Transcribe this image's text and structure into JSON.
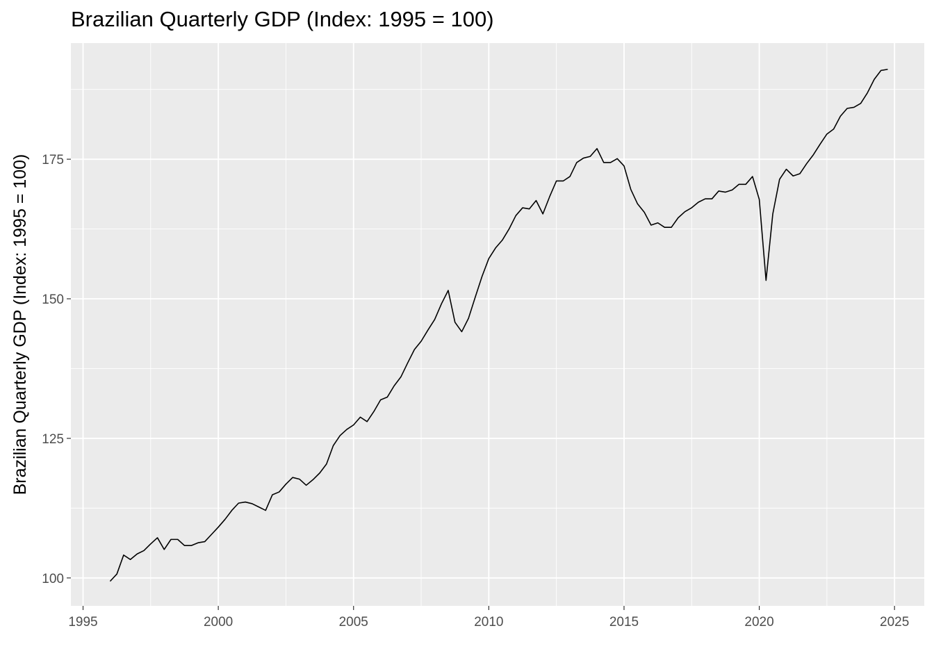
{
  "chart_data": {
    "type": "line",
    "title": "Brazilian Quarterly GDP (Index: 1995 = 100)",
    "xlabel": "",
    "ylabel": "Brazilian Quarterly GDP (Index: 1995 = 100)",
    "xlim": [
      1994.55,
      2026.1
    ],
    "ylim": [
      95.0,
      195.8
    ],
    "x_ticks": [
      1995,
      2000,
      2005,
      2010,
      2015,
      2020,
      2025
    ],
    "x_tick_labels": [
      "1995",
      "2000",
      "2005",
      "2010",
      "2015",
      "2020",
      "2025"
    ],
    "y_ticks": [
      100,
      125,
      150,
      175
    ],
    "y_tick_labels": [
      "100",
      "125",
      "150",
      "175"
    ],
    "grid": true,
    "legend": "none",
    "colors": {
      "panel": "#ebebeb",
      "grid": "#ffffff",
      "line": "#000000",
      "tick_text": "#4d4d4d"
    },
    "series": [
      {
        "x": [
          1996.0,
          1996.25,
          1996.5,
          1996.75,
          1997.0,
          1997.25,
          1997.5,
          1997.75,
          1998.0,
          1998.25,
          1998.5,
          1998.75,
          1999.0,
          1999.25,
          1999.5,
          1999.75,
          2000.0,
          2000.25,
          2000.5,
          2000.75,
          2001.0,
          2001.25,
          2001.5,
          2001.75,
          2002.0,
          2002.25,
          2002.5,
          2002.75,
          2003.0,
          2003.25,
          2003.5,
          2003.75,
          2004.0,
          2004.25,
          2004.5,
          2004.75,
          2005.0,
          2005.25,
          2005.5,
          2005.75,
          2006.0,
          2006.25,
          2006.5,
          2006.75,
          2007.0,
          2007.25,
          2007.5,
          2007.75,
          2008.0,
          2008.25,
          2008.5,
          2008.75,
          2009.0,
          2009.25,
          2009.5,
          2009.75,
          2010.0,
          2010.25,
          2010.5,
          2010.75,
          2011.0,
          2011.25,
          2011.5,
          2011.75,
          2012.0,
          2012.25,
          2012.5,
          2012.75,
          2013.0,
          2013.25,
          2013.5,
          2013.75,
          2014.0,
          2014.25,
          2014.5,
          2014.75,
          2015.0,
          2015.25,
          2015.5,
          2015.75,
          2016.0,
          2016.25,
          2016.5,
          2016.75,
          2017.0,
          2017.25,
          2017.5,
          2017.75,
          2018.0,
          2018.25,
          2018.5,
          2018.75,
          2019.0,
          2019.25,
          2019.5,
          2019.75,
          2020.0,
          2020.25,
          2020.5,
          2020.75,
          2021.0,
          2021.25,
          2021.5,
          2021.75,
          2022.0,
          2022.25,
          2022.5,
          2022.75,
          2023.0,
          2023.25,
          2023.5,
          2023.75,
          2024.0,
          2024.25,
          2024.5,
          2024.75
        ],
        "y": [
          99.4,
          100.7,
          104.1,
          103.3,
          104.3,
          104.9,
          106.1,
          107.2,
          105.1,
          106.9,
          106.9,
          105.8,
          105.8,
          106.3,
          106.5,
          107.8,
          109.1,
          110.5,
          112.1,
          113.4,
          113.6,
          113.3,
          112.7,
          112.1,
          114.9,
          115.4,
          116.8,
          118.0,
          117.7,
          116.6,
          117.6,
          118.8,
          120.4,
          123.7,
          125.5,
          126.6,
          127.4,
          128.8,
          128.0,
          129.8,
          131.9,
          132.4,
          134.4,
          136.0,
          138.5,
          140.9,
          142.4,
          144.4,
          146.3,
          149.1,
          151.5,
          145.8,
          144.1,
          146.5,
          150.3,
          154.0,
          157.2,
          159.1,
          160.5,
          162.5,
          164.9,
          166.3,
          166.1,
          167.6,
          165.2,
          168.3,
          171.1,
          171.1,
          171.9,
          174.4,
          175.2,
          175.5,
          176.9,
          174.4,
          174.4,
          175.1,
          173.8,
          169.6,
          167.0,
          165.5,
          163.2,
          163.6,
          162.8,
          162.8,
          164.5,
          165.6,
          166.3,
          167.3,
          167.9,
          167.9,
          169.3,
          169.1,
          169.5,
          170.5,
          170.5,
          171.9,
          167.8,
          153.3,
          165.2,
          171.4,
          173.2,
          172.0,
          172.4,
          174.2,
          175.8,
          177.7,
          179.5,
          180.4,
          182.7,
          184.1,
          184.3,
          185.0,
          186.9,
          189.3,
          190.9,
          191.1
        ]
      }
    ]
  }
}
